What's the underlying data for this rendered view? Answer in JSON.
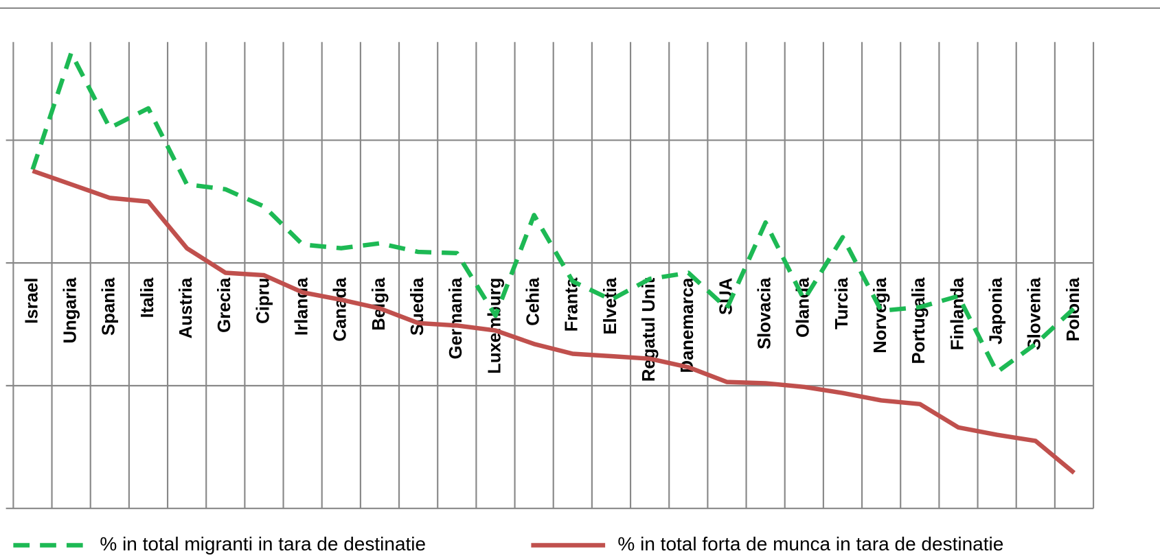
{
  "chart_data": {
    "type": "line",
    "categories": [
      "Israel",
      "Ungaria",
      "Spania",
      "Italia",
      "Austria",
      "Grecia",
      "Cipru",
      "Irlanda",
      "Canada",
      "Belgia",
      "Suedia",
      "Germania",
      "Luxemburg",
      "Cehia",
      "Franta",
      "Elvetia",
      "Regatul Unit",
      "Danemarca",
      "SUA",
      "Slovacia",
      "Olanda",
      "Turcia",
      "Norvegia",
      "Portugalia",
      "Finlanda",
      "Japonia",
      "Slovenia",
      "Polonia"
    ],
    "series": [
      {
        "name": "% in total migranti in tara de destinatie",
        "color": "#1db954",
        "dashed": true,
        "values": [
          2.76,
          3.71,
          3.1,
          3.26,
          2.64,
          2.6,
          2.46,
          2.15,
          2.12,
          2.16,
          2.09,
          2.08,
          1.57,
          2.39,
          1.85,
          1.7,
          1.87,
          1.92,
          1.63,
          2.33,
          1.7,
          2.21,
          1.61,
          1.64,
          1.73,
          1.11,
          1.34,
          1.63
        ]
      },
      {
        "name": "% in total forta de munca in tara de destinatie",
        "color": "#c0504d",
        "dashed": false,
        "values": [
          2.75,
          2.64,
          2.53,
          2.5,
          2.12,
          1.92,
          1.9,
          1.76,
          1.7,
          1.63,
          1.51,
          1.49,
          1.45,
          1.34,
          1.26,
          1.24,
          1.22,
          1.15,
          1.03,
          1.02,
          0.99,
          0.94,
          0.88,
          0.85,
          0.66,
          0.6,
          0.55,
          0.29
        ]
      }
    ],
    "ylim": [
      0,
      3.8
    ],
    "yticks": [
      0,
      1,
      2,
      3
    ],
    "grid": true,
    "legend": "bottom"
  }
}
